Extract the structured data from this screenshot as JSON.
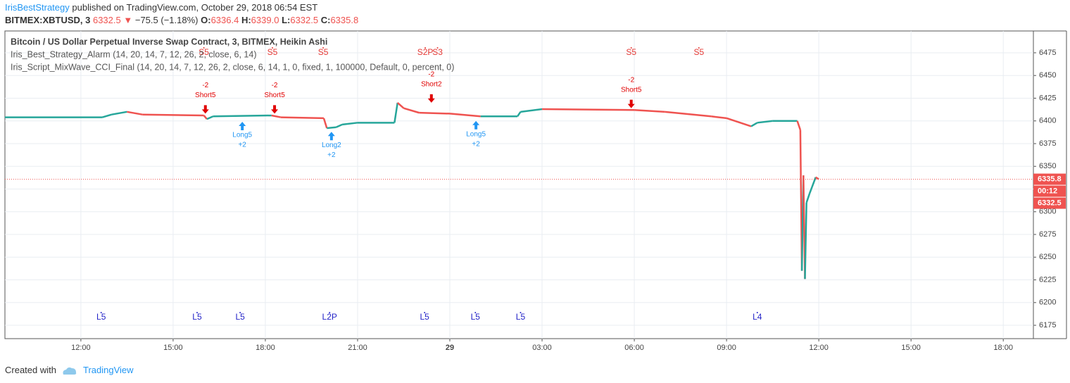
{
  "header": {
    "author": "IrisBestStrategy",
    "published": "published on TradingView.com, October 29, 2018 06:54 EST",
    "symbol": "BITMEX:XBTUSD, 3",
    "last": "6332.5",
    "arrow": "▼",
    "change": "−75.5 (−1.18%)",
    "o_label": "O:",
    "o": "6336.4",
    "h_label": "H:",
    "h": "6339.0",
    "l_label": "L:",
    "l": "6332.5",
    "c_label": "C:",
    "c": "6335.8"
  },
  "legend": [
    "Bitcoin / US Dollar Perpetual Inverse Swap Contract, 3, BITMEX, Heikin Ashi",
    "Iris_Best_Strategy_Alarm (14, 20, 14, 7, 12, 26, 2, close, 6, 14)",
    "Iris_Script_MixWave_CCI_Final (14, 20, 14, 7, 12, 26, 2, close, 6, 14, 1, 0, fixed, 1, 100000, Default, 0, percent, 0)"
  ],
  "footer": {
    "created": "Created with",
    "brand": "TradingView"
  },
  "chart_data": {
    "type": "line",
    "x": [
      9.53,
      12.7,
      13.0,
      13.5,
      14.0,
      16.0,
      16.1,
      16.3,
      18.2,
      18.5,
      19.9,
      20.0,
      20.3,
      20.5,
      21.0,
      22.2,
      22.3,
      22.5,
      23.0,
      24.0,
      25.0,
      26.2,
      26.3,
      27.0,
      30.0,
      31.0,
      32.5,
      33.0,
      33.8,
      34.0,
      34.5,
      35.3,
      35.4,
      35.45,
      35.5,
      35.55,
      35.6,
      35.7,
      35.9,
      36.0
    ],
    "series": [
      {
        "name": "XBTUSD",
        "up_color": "#26a69a",
        "down_color": "#ef5350",
        "values": [
          6404,
          6404,
          6407,
          6410,
          6407,
          6406,
          6402,
          6405,
          6406,
          6404,
          6403,
          6392,
          6393,
          6396,
          6398,
          6398,
          6420,
          6414,
          6409,
          6408,
          6405,
          6405,
          6410,
          6413,
          6412,
          6410,
          6405,
          6403,
          6394,
          6398,
          6400,
          6400,
          6390,
          6235,
          6340,
          6226,
          6310,
          6320,
          6338,
          6335.8
        ]
      }
    ],
    "xlim": [
      9.53,
      42.98
    ],
    "ylim": [
      6160.3,
      6499
    ],
    "xticks": [
      {
        "value": 12,
        "label": "12:00"
      },
      {
        "value": 15,
        "label": "15:00"
      },
      {
        "value": 18,
        "label": "18:00"
      },
      {
        "value": 21,
        "label": "21:00"
      },
      {
        "value": 24,
        "label": "29"
      },
      {
        "value": 27,
        "label": "03:00"
      },
      {
        "value": 30,
        "label": "06:00"
      },
      {
        "value": 33,
        "label": "09:00"
      },
      {
        "value": 36,
        "label": "12:00"
      },
      {
        "value": 39,
        "label": "15:00"
      },
      {
        "value": 42,
        "label": "18:00"
      }
    ],
    "yticks": [
      6175,
      6200,
      6225,
      6250,
      6275,
      6300,
      6325,
      6350,
      6375,
      6400,
      6425,
      6450,
      6475
    ],
    "grid": true,
    "price_line": {
      "value": 6335.8,
      "label": "6335.8",
      "countdown": "00:12",
      "low_label": "6332.5",
      "color": "#ef5350"
    },
    "top_signals": {
      "x": [
        16.0,
        18.23,
        19.88,
        23.2,
        23.6,
        29.9,
        32.1
      ],
      "labels": [
        "S5",
        "S5",
        "S5",
        "S2P",
        "S3",
        "S5",
        "S5"
      ],
      "color": "#e53935"
    },
    "bottom_signals": {
      "x": [
        12.66,
        15.78,
        17.18,
        20.09,
        23.18,
        24.83,
        26.3,
        34.0
      ],
      "labels": [
        "L5",
        "L5",
        "L5",
        "L2P",
        "L5",
        "L5",
        "L5",
        "L4"
      ],
      "color": "#2424c8"
    },
    "shorts": {
      "x": [
        16.05,
        18.3,
        23.4,
        29.9
      ],
      "y": [
        6408,
        6408,
        6420,
        6414
      ],
      "labels": [
        "Short5",
        "Short5",
        "Short2",
        "Short5"
      ],
      "qty": [
        "-2",
        "-2",
        "-2",
        "-2"
      ],
      "color": "#e00000"
    },
    "longs": {
      "x": [
        17.25,
        20.15,
        24.85
      ],
      "y": [
        6399,
        6388,
        6400
      ],
      "labels": [
        "Long5",
        "Long2",
        "Long5"
      ],
      "qty": [
        "+2",
        "+2",
        "+2"
      ],
      "color": "#2196f3"
    }
  }
}
